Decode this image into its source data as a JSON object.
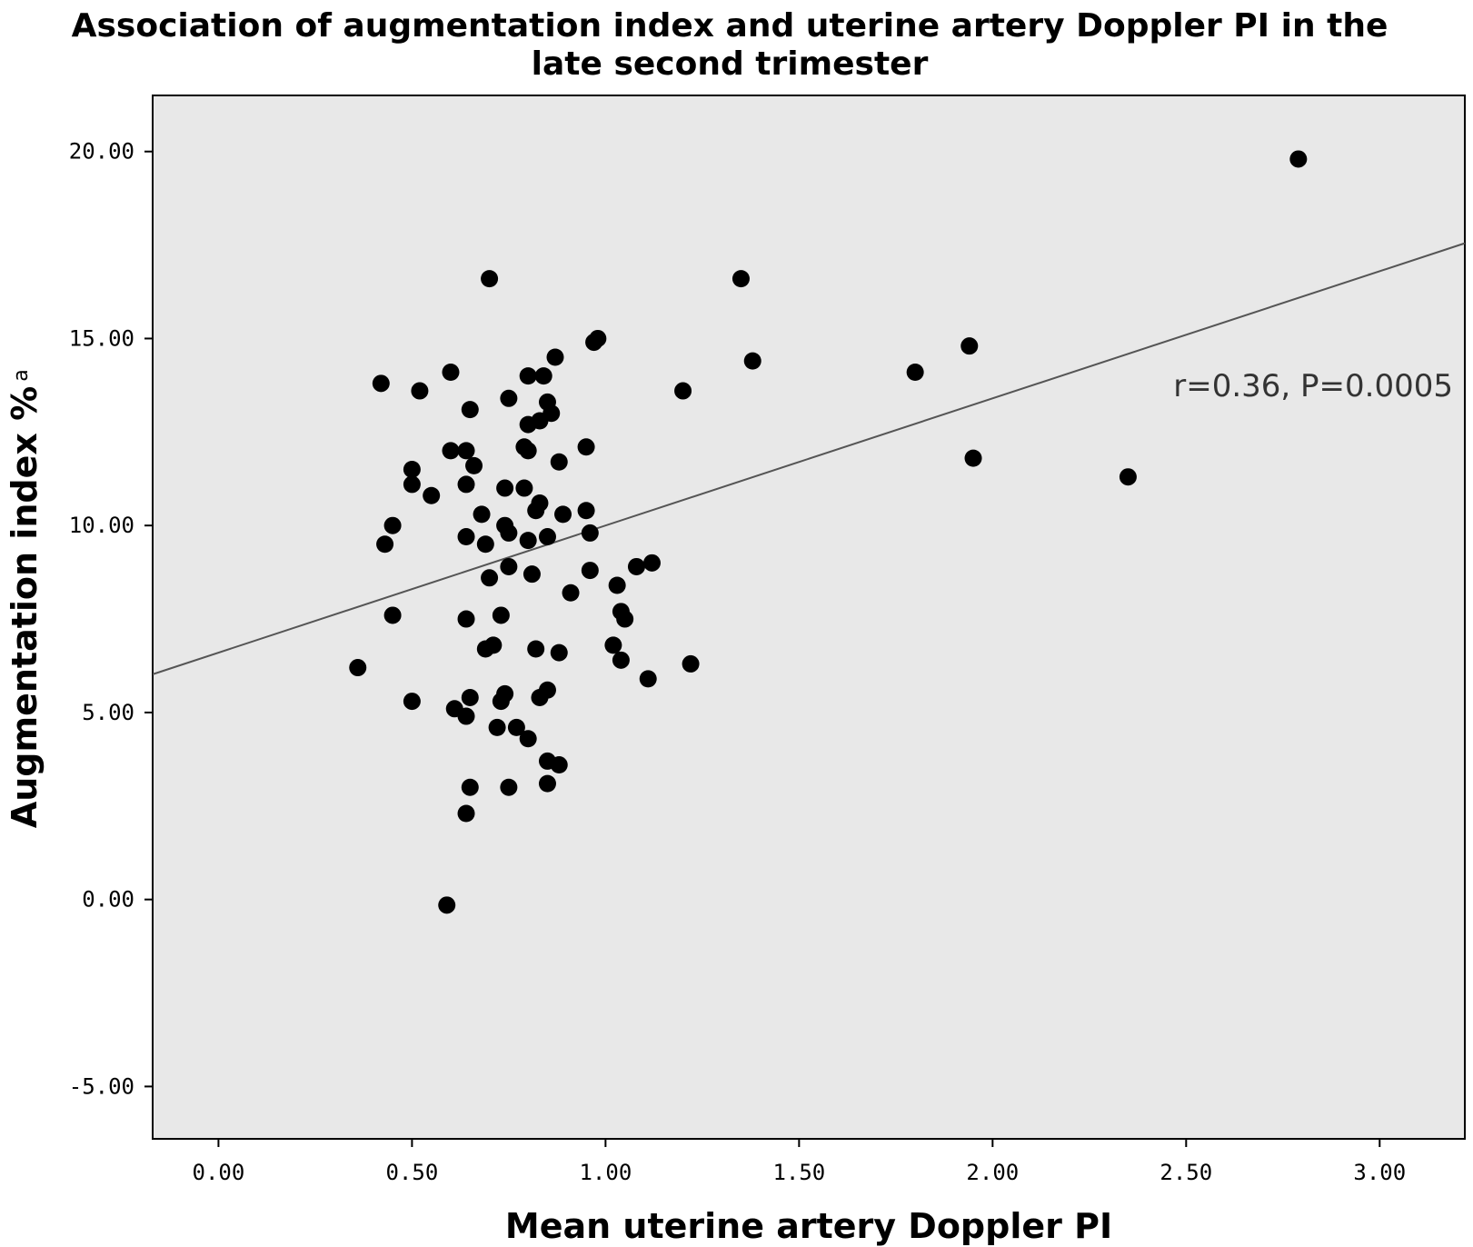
{
  "chart_data": {
    "type": "scatter",
    "title_line1": "Association of augmentation index and uterine artery Doppler PI in the",
    "title_line2": "late second trimester",
    "xlabel": "Mean uterine artery Doppler PI",
    "ylabel": "Augmentation index %",
    "ylabel_superscript": "a",
    "xlim": [
      -0.17,
      3.22
    ],
    "ylim": [
      -6.4,
      21.5
    ],
    "x_ticks": [
      0,
      0.5,
      1,
      1.5,
      2,
      2.5,
      3
    ],
    "x_tick_labels": [
      "0.00",
      "0.50",
      "1.00",
      "1.50",
      "2.00",
      "2.50",
      "3.00"
    ],
    "y_ticks": [
      -5,
      0,
      5,
      10,
      15,
      20
    ],
    "y_tick_labels": [
      "-5.00",
      "0.00",
      "5.00",
      "10.00",
      "15.00",
      "20.00"
    ],
    "grid": false,
    "fit_line": {
      "intercept": 6.6,
      "slope": 3.4
    },
    "annotation": "r=0.36, P=0.0005",
    "colors": {
      "plot_bg": "#e8e8e8",
      "points": "#000000",
      "fit_line": "#555555"
    },
    "points": [
      [
        0.36,
        6.2
      ],
      [
        0.42,
        13.8
      ],
      [
        0.43,
        9.5
      ],
      [
        0.45,
        10.0
      ],
      [
        0.45,
        7.6
      ],
      [
        0.5,
        11.5
      ],
      [
        0.5,
        11.1
      ],
      [
        0.5,
        5.3
      ],
      [
        0.52,
        13.6
      ],
      [
        0.55,
        10.8
      ],
      [
        0.59,
        -0.15
      ],
      [
        0.6,
        14.1
      ],
      [
        0.6,
        12.0
      ],
      [
        0.61,
        5.1
      ],
      [
        0.64,
        12.0
      ],
      [
        0.64,
        11.1
      ],
      [
        0.64,
        9.7
      ],
      [
        0.64,
        7.5
      ],
      [
        0.64,
        4.9
      ],
      [
        0.64,
        2.3
      ],
      [
        0.65,
        13.1
      ],
      [
        0.65,
        5.4
      ],
      [
        0.65,
        3.0
      ],
      [
        0.66,
        11.6
      ],
      [
        0.68,
        10.3
      ],
      [
        0.69,
        9.5
      ],
      [
        0.69,
        6.7
      ],
      [
        0.7,
        16.6
      ],
      [
        0.7,
        8.6
      ],
      [
        0.71,
        6.8
      ],
      [
        0.72,
        4.6
      ],
      [
        0.73,
        7.6
      ],
      [
        0.73,
        5.3
      ],
      [
        0.74,
        11.0
      ],
      [
        0.74,
        10.0
      ],
      [
        0.74,
        5.5
      ],
      [
        0.75,
        13.4
      ],
      [
        0.75,
        9.8
      ],
      [
        0.75,
        8.9
      ],
      [
        0.75,
        3.0
      ],
      [
        0.77,
        4.6
      ],
      [
        0.79,
        12.1
      ],
      [
        0.79,
        11.0
      ],
      [
        0.8,
        14.0
      ],
      [
        0.8,
        12.7
      ],
      [
        0.8,
        12.0
      ],
      [
        0.8,
        9.6
      ],
      [
        0.8,
        4.3
      ],
      [
        0.81,
        8.7
      ],
      [
        0.82,
        10.4
      ],
      [
        0.82,
        6.7
      ],
      [
        0.83,
        12.8
      ],
      [
        0.83,
        10.6
      ],
      [
        0.83,
        5.4
      ],
      [
        0.84,
        14.0
      ],
      [
        0.85,
        13.3
      ],
      [
        0.85,
        9.7
      ],
      [
        0.85,
        5.6
      ],
      [
        0.85,
        3.7
      ],
      [
        0.85,
        3.1
      ],
      [
        0.86,
        13.0
      ],
      [
        0.87,
        14.5
      ],
      [
        0.88,
        11.7
      ],
      [
        0.88,
        6.6
      ],
      [
        0.88,
        3.6
      ],
      [
        0.89,
        10.3
      ],
      [
        0.91,
        8.2
      ],
      [
        0.95,
        12.1
      ],
      [
        0.95,
        10.4
      ],
      [
        0.96,
        9.8
      ],
      [
        0.96,
        8.8
      ],
      [
        0.97,
        14.9
      ],
      [
        0.98,
        15.0
      ],
      [
        1.02,
        6.8
      ],
      [
        1.03,
        8.4
      ],
      [
        1.04,
        7.7
      ],
      [
        1.04,
        6.4
      ],
      [
        1.05,
        7.5
      ],
      [
        1.08,
        8.9
      ],
      [
        1.11,
        5.9
      ],
      [
        1.12,
        9.0
      ],
      [
        1.2,
        13.6
      ],
      [
        1.22,
        6.3
      ],
      [
        1.35,
        16.6
      ],
      [
        1.38,
        14.4
      ],
      [
        1.8,
        14.1
      ],
      [
        1.94,
        14.8
      ],
      [
        1.95,
        11.8
      ],
      [
        2.35,
        11.3
      ],
      [
        2.79,
        19.8
      ]
    ]
  }
}
